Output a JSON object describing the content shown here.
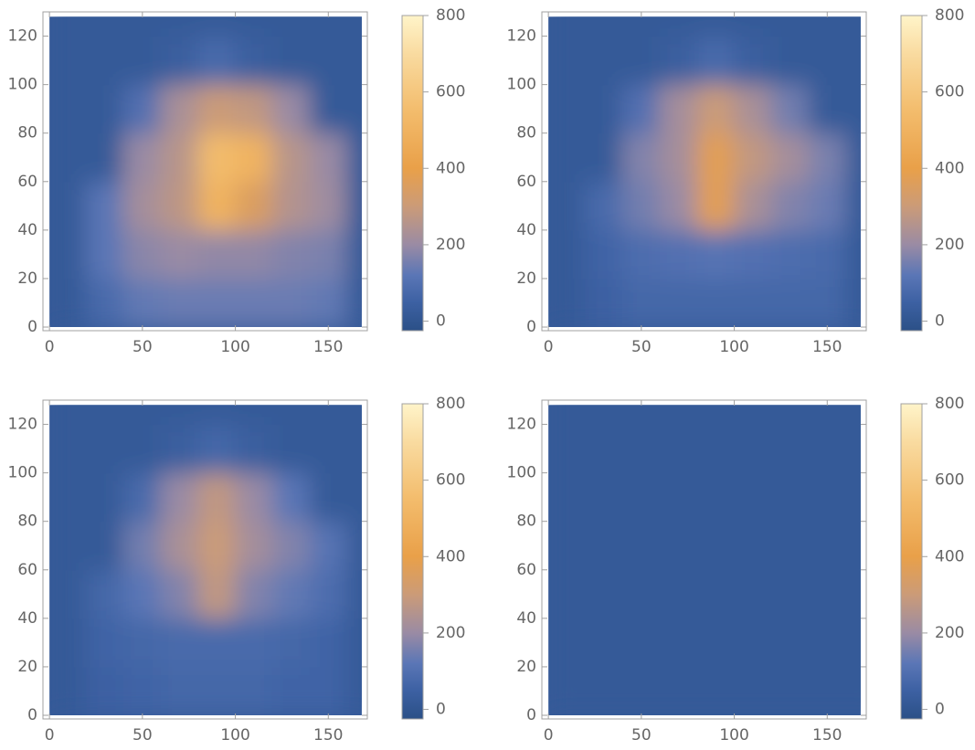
{
  "chart_data": [
    {
      "type": "heatmap",
      "x": [
        10,
        30,
        50,
        70,
        90,
        110,
        130,
        150,
        170
      ],
      "y": [
        10,
        30,
        50,
        70,
        90,
        110,
        130
      ],
      "z": [
        [
          20,
          80,
          130,
          140,
          140,
          140,
          140,
          130,
          20
        ],
        [
          20,
          120,
          180,
          200,
          190,
          190,
          170,
          160,
          20
        ],
        [
          20,
          120,
          220,
          270,
          500,
          350,
          250,
          210,
          20
        ],
        [
          20,
          20,
          200,
          260,
          550,
          500,
          260,
          200,
          20
        ],
        [
          20,
          20,
          100,
          230,
          300,
          280,
          200,
          20,
          20
        ],
        [
          20,
          20,
          20,
          40,
          80,
          40,
          20,
          20,
          20
        ],
        [
          20,
          20,
          20,
          20,
          20,
          20,
          20,
          20,
          20
        ]
      ],
      "x_extent": [
        0,
        168
      ],
      "y_extent": [
        0,
        128
      ],
      "xlim": [
        -3.5,
        171
      ],
      "ylim": [
        -1.5,
        130
      ],
      "xticks": [
        0,
        50,
        100,
        150
      ],
      "yticks": [
        0,
        20,
        40,
        60,
        80,
        100,
        120
      ],
      "clim": [
        -25,
        800
      ],
      "cticks": [
        0,
        200,
        400,
        600,
        800
      ],
      "colormap": [
        {
          "value": -25,
          "color": "#2b5087"
        },
        {
          "value": 50,
          "color": "#3d61a3"
        },
        {
          "value": 120,
          "color": "#5a76b6"
        },
        {
          "value": 200,
          "color": "#9a8ba4"
        },
        {
          "value": 300,
          "color": "#cb9b78"
        },
        {
          "value": 400,
          "color": "#e9a049"
        },
        {
          "value": 550,
          "color": "#f3bc6c"
        },
        {
          "value": 700,
          "color": "#f9dba0"
        },
        {
          "value": 800,
          "color": "#fff4c9"
        }
      ]
    },
    {
      "type": "heatmap",
      "x": [
        10,
        30,
        50,
        70,
        90,
        110,
        130,
        150,
        170
      ],
      "y": [
        10,
        30,
        50,
        70,
        90,
        110,
        130
      ],
      "z": [
        [
          20,
          50,
          70,
          70,
          70,
          70,
          70,
          70,
          20
        ],
        [
          20,
          60,
          90,
          100,
          110,
          100,
          90,
          80,
          20
        ],
        [
          20,
          80,
          150,
          200,
          380,
          230,
          170,
          140,
          20
        ],
        [
          20,
          20,
          170,
          220,
          380,
          280,
          220,
          160,
          20
        ],
        [
          20,
          20,
          100,
          220,
          300,
          230,
          150,
          20,
          20
        ],
        [
          20,
          20,
          20,
          40,
          80,
          40,
          20,
          20,
          20
        ],
        [
          20,
          20,
          20,
          20,
          20,
          20,
          20,
          20,
          20
        ]
      ],
      "x_extent": [
        0,
        168
      ],
      "y_extent": [
        0,
        128
      ],
      "xlim": [
        -3.5,
        171
      ],
      "ylim": [
        -1.5,
        130
      ],
      "xticks": [
        0,
        50,
        100,
        150
      ],
      "yticks": [
        0,
        20,
        40,
        60,
        80,
        100,
        120
      ],
      "clim": [
        -25,
        800
      ],
      "cticks": [
        0,
        200,
        400,
        600,
        800
      ],
      "colormap": [
        {
          "value": -25,
          "color": "#2b5087"
        },
        {
          "value": 50,
          "color": "#3d61a3"
        },
        {
          "value": 120,
          "color": "#5a76b6"
        },
        {
          "value": 200,
          "color": "#9a8ba4"
        },
        {
          "value": 300,
          "color": "#cb9b78"
        },
        {
          "value": 400,
          "color": "#e9a049"
        },
        {
          "value": 550,
          "color": "#f3bc6c"
        },
        {
          "value": 700,
          "color": "#f9dba0"
        },
        {
          "value": 800,
          "color": "#fff4c9"
        }
      ]
    },
    {
      "type": "heatmap",
      "x": [
        10,
        30,
        50,
        70,
        90,
        110,
        130,
        150,
        170
      ],
      "y": [
        10,
        30,
        50,
        70,
        90,
        110,
        130
      ],
      "z": [
        [
          20,
          50,
          60,
          70,
          70,
          70,
          60,
          60,
          20
        ],
        [
          20,
          60,
          70,
          80,
          80,
          80,
          70,
          60,
          20
        ],
        [
          20,
          70,
          120,
          170,
          280,
          170,
          130,
          90,
          20
        ],
        [
          20,
          20,
          150,
          230,
          300,
          220,
          170,
          110,
          20
        ],
        [
          20,
          20,
          80,
          200,
          280,
          200,
          120,
          20,
          20
        ],
        [
          20,
          20,
          20,
          40,
          70,
          40,
          20,
          20,
          20
        ],
        [
          20,
          20,
          20,
          20,
          20,
          20,
          20,
          20,
          20
        ]
      ],
      "x_extent": [
        0,
        168
      ],
      "y_extent": [
        0,
        128
      ],
      "xlim": [
        -3.5,
        171
      ],
      "ylim": [
        -1.5,
        130
      ],
      "xticks": [
        0,
        50,
        100,
        150
      ],
      "yticks": [
        0,
        20,
        40,
        60,
        80,
        100,
        120
      ],
      "clim": [
        -25,
        800
      ],
      "cticks": [
        0,
        200,
        400,
        600,
        800
      ],
      "colormap": [
        {
          "value": -25,
          "color": "#2b5087"
        },
        {
          "value": 50,
          "color": "#3d61a3"
        },
        {
          "value": 120,
          "color": "#5a76b6"
        },
        {
          "value": 200,
          "color": "#9a8ba4"
        },
        {
          "value": 300,
          "color": "#cb9b78"
        },
        {
          "value": 400,
          "color": "#e9a049"
        },
        {
          "value": 550,
          "color": "#f3bc6c"
        },
        {
          "value": 700,
          "color": "#f9dba0"
        },
        {
          "value": 800,
          "color": "#fff4c9"
        }
      ]
    },
    {
      "type": "heatmap",
      "x": [
        10,
        30,
        50,
        70,
        90,
        110,
        130,
        150,
        170
      ],
      "y": [
        10,
        30,
        50,
        70,
        90,
        110,
        130
      ],
      "z": [
        [
          20,
          20,
          20,
          20,
          20,
          20,
          20,
          20,
          20
        ],
        [
          20,
          20,
          20,
          20,
          20,
          20,
          20,
          20,
          20
        ],
        [
          20,
          20,
          20,
          20,
          20,
          20,
          20,
          20,
          20
        ],
        [
          20,
          20,
          20,
          20,
          20,
          20,
          20,
          20,
          20
        ],
        [
          20,
          20,
          20,
          20,
          20,
          20,
          20,
          20,
          20
        ],
        [
          20,
          20,
          20,
          20,
          20,
          20,
          20,
          20,
          20
        ],
        [
          20,
          20,
          20,
          20,
          20,
          20,
          20,
          20,
          20
        ]
      ],
      "x_extent": [
        0,
        168
      ],
      "y_extent": [
        0,
        128
      ],
      "xlim": [
        -3.5,
        171
      ],
      "ylim": [
        -1.5,
        130
      ],
      "xticks": [
        0,
        50,
        100,
        150
      ],
      "yticks": [
        0,
        20,
        40,
        60,
        80,
        100,
        120
      ],
      "clim": [
        -25,
        800
      ],
      "cticks": [
        0,
        200,
        400,
        600,
        800
      ],
      "colormap": [
        {
          "value": -25,
          "color": "#2b5087"
        },
        {
          "value": 50,
          "color": "#3d61a3"
        },
        {
          "value": 120,
          "color": "#5a76b6"
        },
        {
          "value": 200,
          "color": "#9a8ba4"
        },
        {
          "value": 300,
          "color": "#cb9b78"
        },
        {
          "value": 400,
          "color": "#e9a049"
        },
        {
          "value": 550,
          "color": "#f3bc6c"
        },
        {
          "value": 700,
          "color": "#f9dba0"
        },
        {
          "value": 800,
          "color": "#fff4c9"
        }
      ]
    }
  ]
}
